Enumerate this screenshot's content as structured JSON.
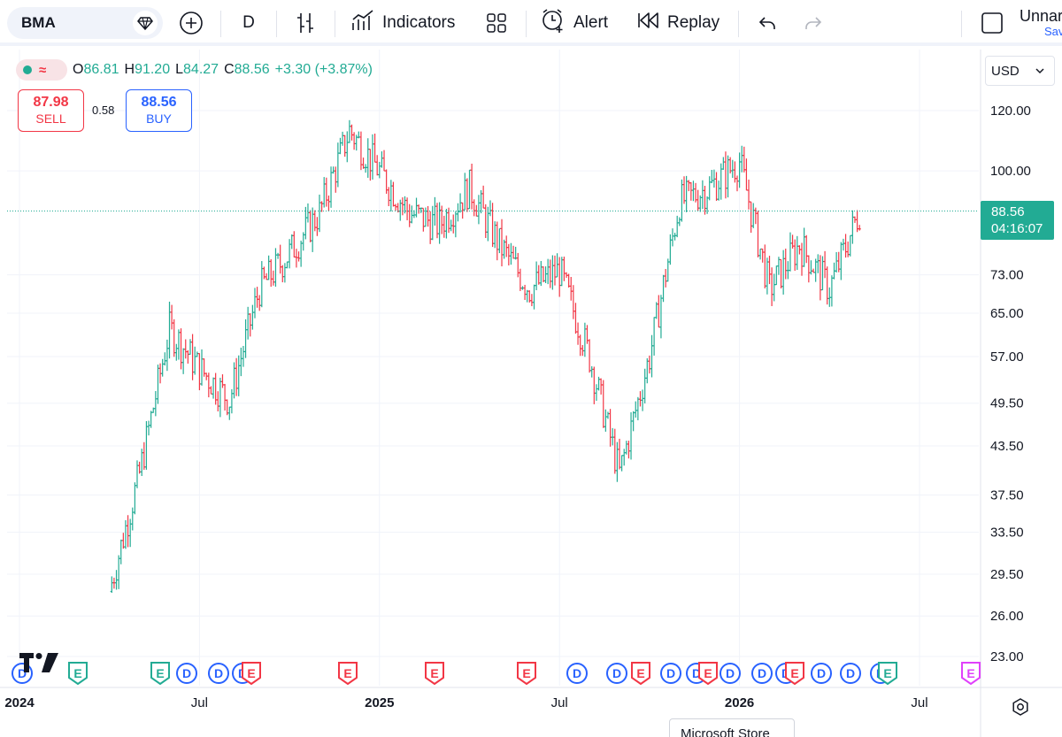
{
  "toolbar": {
    "symbol": "BMA",
    "interval": "D",
    "indicators_label": "Indicators",
    "alert_label": "Alert",
    "replay_label": "Replay",
    "layout_name": "Unnar",
    "layout_status": "Sav"
  },
  "legend": {
    "open_key": "O",
    "open": "86.81",
    "high_key": "H",
    "high": "91.20",
    "low_key": "L",
    "low": "84.27",
    "close_key": "C",
    "close": "88.56",
    "change": "+3.30 (+3.87%)"
  },
  "trade": {
    "sell_price": "87.98",
    "sell_label": "SELL",
    "spread": "0.58",
    "buy_price": "88.56",
    "buy_label": "BUY"
  },
  "currency": "USD",
  "last_price": {
    "price": "88.56",
    "countdown": "04:16:07"
  },
  "tooltip": "Microsoft Store",
  "colors": {
    "up": "#22ab94",
    "down": "#f23645",
    "dividends": "#2962ff",
    "accent": "#2962ff"
  },
  "icons": [
    "plus-circle-icon",
    "bar-style-icon",
    "indicators-icon",
    "layout-grid-icon",
    "alarm-clock-icon",
    "replay-icon",
    "undo-icon",
    "redo-icon",
    "settings-icon"
  ],
  "events": [
    {
      "type": "D",
      "color": "blue"
    },
    {
      "type": "E",
      "color": "green"
    },
    {
      "type": "E",
      "color": "green"
    },
    {
      "type": "D",
      "color": "blue"
    },
    {
      "type": "D",
      "color": "blue"
    },
    {
      "type": "D",
      "color": "blue"
    },
    {
      "type": "E",
      "color": "red"
    },
    {
      "type": "E",
      "color": "red"
    },
    {
      "type": "E",
      "color": "red"
    },
    {
      "type": "E",
      "color": "red"
    },
    {
      "type": "D",
      "color": "blue"
    },
    {
      "type": "D",
      "color": "blue"
    },
    {
      "type": "E",
      "color": "red"
    },
    {
      "type": "D",
      "color": "blue"
    },
    {
      "type": "D",
      "color": "blue"
    },
    {
      "type": "D",
      "color": "blue"
    },
    {
      "type": "E",
      "color": "red"
    },
    {
      "type": "D",
      "color": "blue"
    },
    {
      "type": "D",
      "color": "blue"
    },
    {
      "type": "E",
      "color": "red"
    },
    {
      "type": "D",
      "color": "blue"
    },
    {
      "type": "D",
      "color": "blue"
    },
    {
      "type": "D",
      "color": "blue"
    },
    {
      "type": "E",
      "color": "green"
    },
    {
      "type": "E",
      "color": "purple"
    }
  ],
  "chart_data": {
    "type": "bar",
    "scale": "log",
    "grid": true,
    "y_ticks": [
      "120.00",
      "100.00",
      "88.56",
      "73.00",
      "65.00",
      "57.00",
      "49.50",
      "43.50",
      "37.50",
      "33.50",
      "29.50",
      "26.00",
      "23.00"
    ],
    "x_ticks": [
      "2024",
      "Jul",
      "2025",
      "Jul",
      "2026",
      "Jul"
    ],
    "last_price": 88.56,
    "series": [
      {
        "x": "2024-04",
        "close": 28
      },
      {
        "x": "2024-05",
        "close": 40
      },
      {
        "x": "2024-06",
        "close": 62
      },
      {
        "x": "2024-07",
        "close": 55
      },
      {
        "x": "2024-08",
        "close": 50
      },
      {
        "x": "2024-09",
        "close": 70
      },
      {
        "x": "2024-10",
        "close": 78
      },
      {
        "x": "2024-11",
        "close": 88
      },
      {
        "x": "2024-12",
        "close": 113
      },
      {
        "x": "2025-01",
        "close": 100
      },
      {
        "x": "2025-02",
        "close": 88
      },
      {
        "x": "2025-03",
        "close": 85
      },
      {
        "x": "2025-04",
        "close": 95
      },
      {
        "x": "2025-05",
        "close": 80
      },
      {
        "x": "2025-06",
        "close": 70
      },
      {
        "x": "2025-07",
        "close": 74
      },
      {
        "x": "2025-08",
        "close": 57
      },
      {
        "x": "2025-09",
        "close": 40
      },
      {
        "x": "2025-10",
        "close": 57
      },
      {
        "x": "2025-11",
        "close": 91
      },
      {
        "x": "2025-12",
        "close": 95
      },
      {
        "x": "2026-01",
        "close": 103
      },
      {
        "x": "2026-02",
        "close": 70
      },
      {
        "x": "2026-03",
        "close": 80
      },
      {
        "x": "2026-04",
        "close": 70
      },
      {
        "x": "2026-05",
        "close": 88.56
      }
    ]
  }
}
